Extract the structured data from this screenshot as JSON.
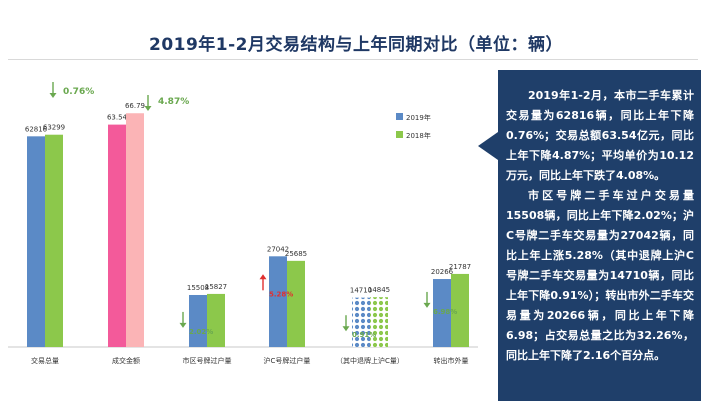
{
  "slide": {
    "title": "2019年1-2月交易结构与上年同期对比（单位：辆）"
  },
  "panel": {
    "paragraphs": [
      "2019年1-2月，本市二手车累计交易量为62816辆，同比上年下降0.76%；交易总额63.54亿元，同比上年下降4.87%；平均单价为10.12万元，同比上年下跌了4.08%。",
      "市区号牌二手车过户交易量15508辆，同比上年下降2.02%；沪C号牌二手车交易量为27042辆，同比上年上涨5.28%（其中退牌上沪C号牌二手车交易量为14710辆，同比上年下降0.91%）；转出市外二手车交易量为20266辆，同比上年下降6.98；占交易总量之比为32.26%，同比上年下降了2.16个百分点。"
    ]
  },
  "chart_data": {
    "type": "bar",
    "categories": [
      "交易总量",
      "成交金额",
      "市区号牌过户量",
      "沪C号牌过户量",
      "（其中退牌上沪C量）",
      "转出市外量"
    ],
    "series": [
      {
        "name": "2019年",
        "values": [
          62816,
          63.54,
          15508,
          27042,
          14710,
          20266
        ],
        "labels": [
          "62816",
          "63.54",
          "15508",
          "27042",
          "14710",
          "20266"
        ]
      },
      {
        "name": "2018年",
        "values": [
          63299,
          66.79,
          15827,
          25685,
          14845,
          21787
        ],
        "labels": [
          "63299",
          "66.79",
          "15827",
          "25685",
          "14845",
          "21787"
        ]
      }
    ],
    "changes": [
      {
        "text": "0.76%",
        "direction": "down"
      },
      {
        "text": "4.87%",
        "direction": "down"
      },
      {
        "text": "2.02%",
        "direction": "down"
      },
      {
        "text": "5.28%",
        "direction": "up"
      },
      {
        "text": "0.91%",
        "direction": "down"
      },
      {
        "text": "6.98%",
        "direction": "down"
      }
    ],
    "legend_position": "right",
    "grid": false,
    "colors": {
      "series_2019": "#5b8ac6",
      "series_2018": "#8cc84b",
      "amount_2019": "#f35a9a",
      "amount_2018": "#fbb4b6",
      "down": "#6aa84f",
      "up": "#e03030",
      "title": "#1f3864",
      "panel": "#1f3f6a"
    }
  }
}
